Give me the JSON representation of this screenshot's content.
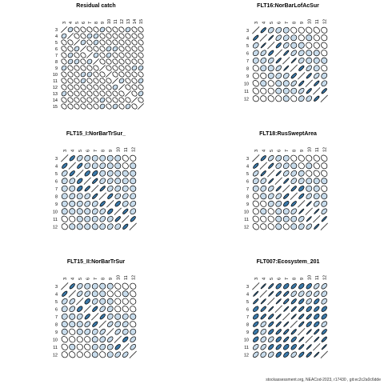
{
  "footer": "stockassessment.org, NEACod-2023, r17430 , git:ec2c2a0c6dde",
  "colors": {
    "outline": "#000000",
    "light": "#c8dcec",
    "dark": "#3a78a8",
    "background": "#ffffff"
  },
  "chart_data": [
    {
      "type": "correlation-matrix",
      "title": "Residual catch",
      "labels": [
        "3",
        "4",
        "5",
        "6",
        "7",
        "8",
        "9",
        "10",
        "11",
        "12",
        "13",
        "14",
        "15"
      ],
      "values": "mostly near-zero correlations with a few moderate positive pairs"
    },
    {
      "type": "correlation-matrix",
      "title": "FLT16:NorBarLofAcSur",
      "labels": [
        "3",
        "4",
        "5",
        "6",
        "7",
        "8",
        "9",
        "10",
        "11",
        "12"
      ],
      "values": "strong positive correlations near the diagonal, weak far from diagonal"
    },
    {
      "type": "correlation-matrix",
      "title": "FLT15_I:NorBarTrSur_",
      "labels": [
        "3",
        "4",
        "5",
        "6",
        "7",
        "8",
        "9",
        "10",
        "11",
        "12"
      ],
      "values": "moderate to strong positive correlations near the diagonal"
    },
    {
      "type": "correlation-matrix",
      "title": "FLT18:RusSweptArea",
      "labels": [
        "3",
        "4",
        "5",
        "6",
        "7",
        "8",
        "9",
        "10",
        "11",
        "12"
      ],
      "values": "strong positive correlations near the diagonal, weak far from diagonal"
    },
    {
      "type": "correlation-matrix",
      "title": "FLT15_II:NorBarTrSur",
      "labels": [
        "3",
        "4",
        "5",
        "6",
        "7",
        "8",
        "9",
        "10",
        "11",
        "12"
      ],
      "values": "moderate positive correlations near the diagonal"
    },
    {
      "type": "correlation-matrix",
      "title": "FLT007:Ecosystem_201",
      "labels": [
        "3",
        "4",
        "5",
        "6",
        "7",
        "8",
        "9",
        "10",
        "11",
        "12"
      ],
      "values": "strong positive correlations across most pairs"
    }
  ]
}
